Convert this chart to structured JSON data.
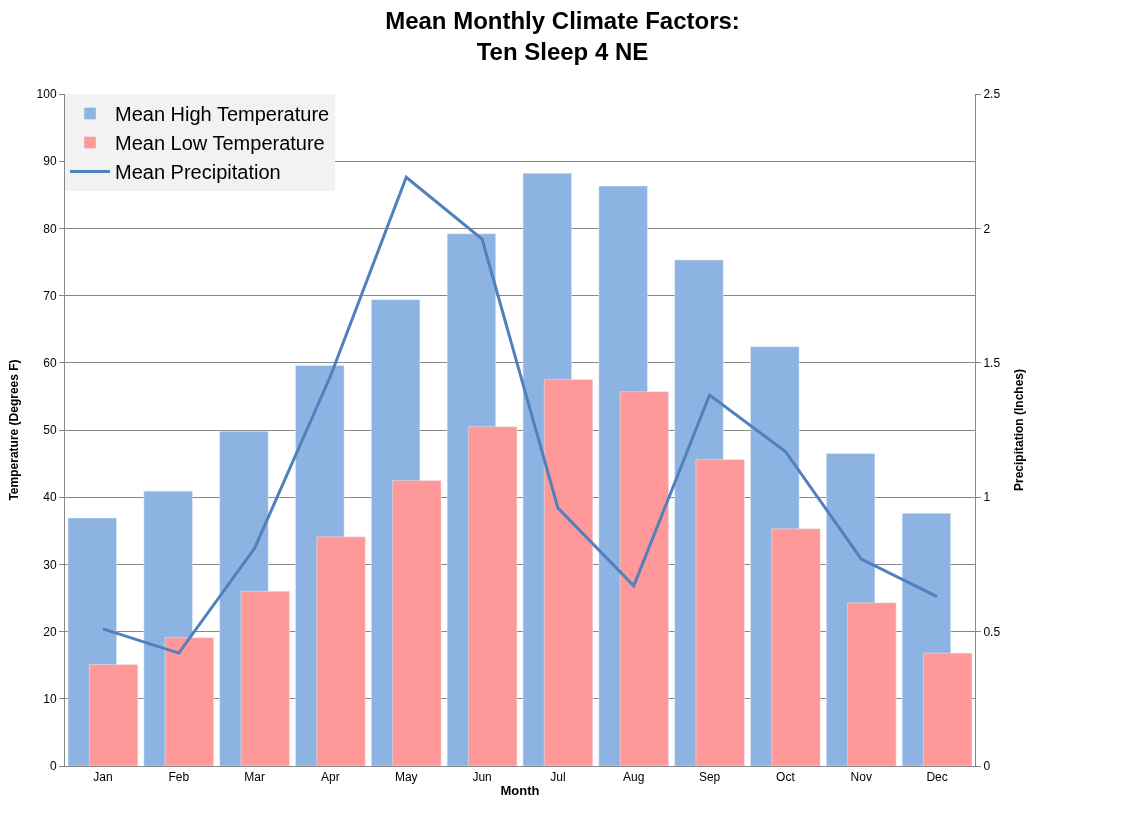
{
  "chart_data": {
    "type": "bar",
    "title": "Mean Monthly Climate Factors:\nTen Sleep 4 NE",
    "xlabel": "Month",
    "ylabel": "Temperature (Degrees F)",
    "y2label": "Precipitation (Inches)",
    "categories": [
      "Jan",
      "Feb",
      "Mar",
      "Apr",
      "May",
      "Jun",
      "Jul",
      "Aug",
      "Sep",
      "Oct",
      "Nov",
      "Dec"
    ],
    "series": [
      {
        "name": "Mean High Temperature",
        "color": "#8db3e2",
        "values": [
          36.9,
          40.9,
          49.8,
          59.6,
          69.4,
          79.2,
          88.2,
          86.3,
          75.3,
          62.4,
          46.5,
          37.6
        ]
      },
      {
        "name": "Mean Low Temperature",
        "color": "#ff9999",
        "values": [
          15.1,
          19.1,
          26.0,
          34.1,
          42.5,
          50.5,
          57.5,
          55.7,
          45.6,
          35.3,
          24.3,
          16.8
        ]
      },
      {
        "name": "Mean Precipitation",
        "type": "line",
        "axis": "y2",
        "color": "#4f81bd",
        "values": [
          0.51,
          0.42,
          0.81,
          1.45,
          2.19,
          1.96,
          0.96,
          0.67,
          1.38,
          1.17,
          0.77,
          0.63
        ]
      }
    ],
    "ylim": [
      0,
      100
    ],
    "yticks": [
      0,
      10,
      20,
      30,
      40,
      50,
      60,
      70,
      80,
      90,
      100
    ],
    "y2lim": [
      0,
      2.5
    ],
    "y2ticks": [
      0,
      0.5,
      1,
      1.5,
      2,
      2.5
    ],
    "grid": "y",
    "legend": "top left",
    "marker": "none",
    "line_style": "solid"
  }
}
